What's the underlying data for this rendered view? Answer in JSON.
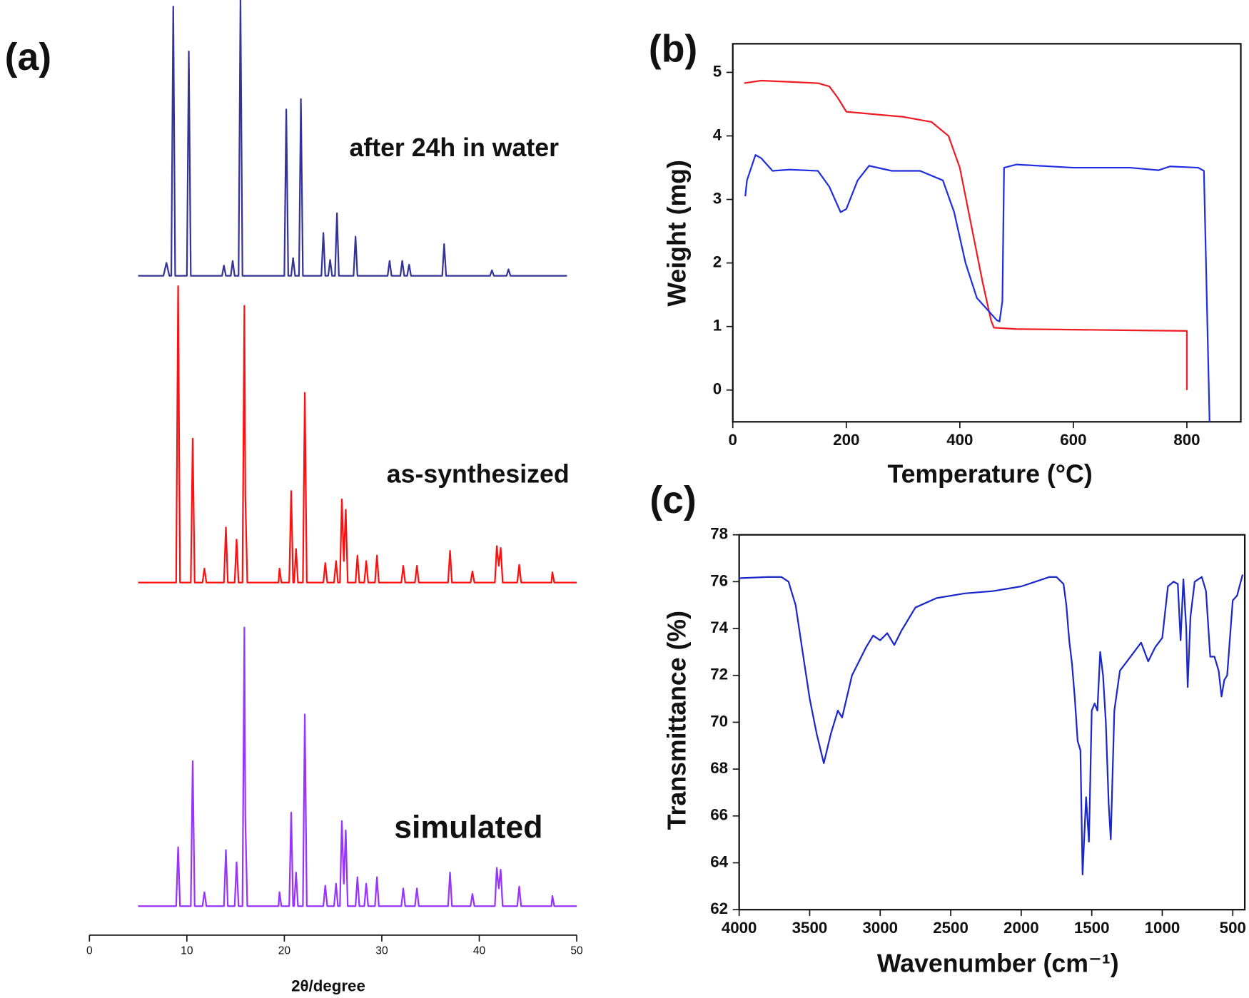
{
  "chart_data": [
    {
      "type": "line",
      "panel_label": "(a)",
      "xlabel": "2θ/degree",
      "xlim": [
        0,
        50
      ],
      "xticks": [
        0,
        10,
        20,
        30,
        40,
        50
      ],
      "ylim": [
        0,
        100
      ],
      "series": [
        {
          "name": "after 24h in water",
          "color": "#333399",
          "x": [
            5,
            7.6,
            7.9,
            8.2,
            8.4,
            8.6,
            8.8,
            10.0,
            10.2,
            10.4,
            13.6,
            13.8,
            14.0,
            14.5,
            14.7,
            14.9,
            15.3,
            15.5,
            15.7,
            20.0,
            20.2,
            20.4,
            20.7,
            20.9,
            21.1,
            21.5,
            21.7,
            21.9,
            23.8,
            24.0,
            24.2,
            24.5,
            24.7,
            24.9,
            25.2,
            25.4,
            25.6,
            27.1,
            27.3,
            27.5,
            30.6,
            30.8,
            31.0,
            31.9,
            32.1,
            32.3,
            32.6,
            32.8,
            33.0,
            36.2,
            36.4,
            36.6,
            41.1,
            41.3,
            41.5,
            42.8,
            43.0,
            43.2,
            49
          ],
          "values": [
            70.5,
            70.5,
            71.9,
            70.5,
            70.5,
            99.3,
            70.5,
            70.5,
            94.5,
            70.5,
            70.5,
            71.6,
            70.5,
            70.5,
            72.1,
            70.5,
            70.5,
            100,
            70.5,
            70.5,
            88.3,
            70.5,
            70.5,
            72.4,
            70.5,
            70.5,
            89.4,
            70.5,
            70.5,
            75.1,
            70.5,
            70.5,
            72.2,
            70.5,
            70.5,
            77.2,
            70.5,
            70.5,
            74.7,
            70.5,
            70.5,
            72.1,
            70.5,
            70.5,
            72.1,
            70.5,
            70.5,
            71.7,
            70.5,
            70.5,
            73.9,
            70.5,
            70.5,
            71.1,
            70.5,
            70.5,
            71.2,
            70.5,
            70.5
          ]
        },
        {
          "name": "as-synthesized",
          "color": "#ff1010",
          "x": [
            5,
            8.9,
            9.1,
            9.3,
            10.4,
            10.6,
            10.8,
            11.6,
            11.8,
            12.0,
            13.8,
            14.0,
            14.2,
            14.9,
            15.1,
            15.3,
            15.7,
            15.9,
            16.0,
            16.2,
            19.4,
            19.5,
            19.7,
            20.5,
            20.7,
            20.9,
            21.0,
            21.2,
            21.4,
            21.9,
            22.1,
            22.3,
            24.0,
            24.2,
            24.4,
            25.1,
            25.3,
            25.5,
            25.7,
            25.9,
            26.1,
            26.3,
            26.5,
            27.3,
            27.5,
            27.7,
            28.2,
            28.4,
            28.6,
            29.3,
            29.5,
            29.7,
            32.0,
            32.2,
            32.4,
            33.4,
            33.6,
            33.8,
            36.8,
            37.0,
            37.2,
            39.1,
            39.3,
            39.5,
            41.6,
            41.8,
            42.0,
            42.2,
            42.4,
            43.9,
            44.1,
            44.3,
            47.4,
            47.5,
            47.7,
            50
          ],
          "values": [
            37.7,
            37.7,
            69.4,
            37.7,
            37.7,
            53.1,
            37.7,
            37.7,
            39.2,
            37.7,
            37.7,
            43.6,
            37.7,
            37.7,
            42.3,
            37.7,
            37.7,
            67.3,
            47.1,
            37.7,
            37.7,
            39.2,
            37.7,
            37.7,
            47.5,
            37.7,
            37.7,
            41.3,
            37.7,
            37.7,
            58.0,
            37.7,
            37.7,
            39.8,
            37.7,
            37.7,
            40.0,
            37.7,
            37.7,
            46.6,
            40.0,
            45.5,
            37.7,
            37.7,
            40.6,
            37.7,
            37.7,
            40.0,
            37.7,
            37.7,
            40.6,
            37.7,
            37.7,
            39.5,
            37.7,
            37.7,
            39.5,
            37.7,
            37.7,
            41.1,
            37.7,
            37.7,
            38.9,
            37.7,
            37.7,
            41.6,
            39.5,
            41.4,
            37.7,
            37.7,
            39.6,
            37.7,
            37.7,
            38.8,
            37.7,
            37.7
          ]
        },
        {
          "name": "simulated",
          "color": "#9933ff",
          "x": [
            5,
            8.9,
            9.1,
            9.3,
            10.4,
            10.6,
            10.8,
            11.6,
            11.8,
            12.0,
            13.8,
            14.0,
            14.2,
            14.9,
            15.1,
            15.3,
            15.7,
            15.9,
            16.0,
            16.2,
            19.4,
            19.5,
            19.7,
            20.5,
            20.7,
            20.9,
            21.0,
            21.2,
            21.4,
            21.9,
            22.1,
            22.3,
            24.0,
            24.2,
            24.4,
            25.1,
            25.3,
            25.5,
            25.7,
            25.9,
            26.1,
            26.3,
            26.5,
            27.3,
            27.5,
            27.7,
            28.2,
            28.4,
            28.6,
            29.3,
            29.5,
            29.7,
            32.0,
            32.2,
            32.4,
            33.4,
            33.6,
            33.8,
            36.8,
            37.0,
            37.2,
            39.1,
            39.3,
            39.5,
            41.6,
            41.8,
            42.0,
            42.2,
            42.4,
            43.9,
            44.1,
            44.3,
            47.4,
            47.5,
            47.7,
            50
          ],
          "values": [
            3.1,
            3.1,
            9.4,
            3.1,
            3.1,
            18.6,
            3.1,
            3.1,
            4.6,
            3.1,
            3.1,
            9.1,
            3.1,
            3.1,
            7.8,
            3.1,
            3.1,
            32.9,
            12.5,
            3.1,
            3.1,
            4.6,
            3.1,
            3.1,
            13.1,
            3.1,
            3.1,
            6.7,
            3.1,
            3.1,
            23.6,
            3.1,
            3.1,
            5.3,
            3.1,
            3.1,
            5.5,
            3.1,
            3.1,
            12.2,
            5.5,
            11.2,
            3.1,
            3.1,
            6.2,
            3.1,
            3.1,
            5.5,
            3.1,
            3.1,
            6.2,
            3.1,
            3.1,
            5.0,
            3.1,
            3.1,
            5.0,
            3.1,
            3.1,
            6.7,
            3.1,
            3.1,
            4.4,
            3.1,
            3.1,
            7.2,
            5.0,
            7.0,
            3.1,
            3.1,
            5.2,
            3.1,
            3.1,
            4.2,
            3.1,
            3.1
          ]
        }
      ]
    },
    {
      "type": "line",
      "panel_label": "(b)",
      "xlabel": "Temperature (°C)",
      "ylabel": "Weight (mg)",
      "xlim": [
        0,
        895
      ],
      "xticks": [
        0,
        200,
        400,
        600,
        800
      ],
      "ylim": [
        -0.5,
        5.45
      ],
      "yticks": [
        0,
        1,
        2,
        3,
        4,
        5
      ],
      "series": [
        {
          "color": "#ee1c24",
          "x": [
            20,
            50,
            100,
            150,
            170,
            185,
            200,
            250,
            300,
            350,
            380,
            400,
            420,
            440,
            455,
            460,
            500,
            600,
            700,
            800,
            800
          ],
          "values": [
            4.83,
            4.87,
            4.85,
            4.83,
            4.78,
            4.6,
            4.38,
            4.34,
            4.3,
            4.22,
            4.0,
            3.5,
            2.6,
            1.7,
            1.1,
            0.98,
            0.96,
            0.95,
            0.94,
            0.93,
            0.0
          ]
        },
        {
          "color": "#1f2fe0",
          "x": [
            22,
            25,
            40,
            50,
            70,
            100,
            150,
            170,
            190,
            200,
            220,
            240,
            280,
            330,
            370,
            390,
            410,
            430,
            450,
            465,
            470,
            475,
            478,
            500,
            600,
            700,
            750,
            770,
            820,
            830,
            840
          ],
          "values": [
            3.05,
            3.3,
            3.7,
            3.65,
            3.45,
            3.47,
            3.45,
            3.2,
            2.8,
            2.85,
            3.3,
            3.53,
            3.45,
            3.45,
            3.3,
            2.8,
            2.0,
            1.45,
            1.25,
            1.1,
            1.08,
            1.4,
            3.5,
            3.55,
            3.5,
            3.5,
            3.46,
            3.52,
            3.5,
            3.45,
            -0.5
          ]
        }
      ]
    },
    {
      "type": "line",
      "panel_label": "(c)",
      "xlabel": "Wavenumber (cm⁻¹)",
      "ylabel": "Transmittance (%)",
      "xlim": [
        4000,
        415
      ],
      "xticks": [
        4000,
        3500,
        3000,
        2500,
        2000,
        1500,
        1000,
        500
      ],
      "ylim": [
        62,
        78
      ],
      "yticks": [
        62,
        64,
        66,
        68,
        70,
        72,
        74,
        76,
        78
      ],
      "series": [
        {
          "color": "#1a27c9",
          "x": [
            4000,
            3800,
            3700,
            3650,
            3600,
            3550,
            3500,
            3450,
            3400,
            3350,
            3300,
            3270,
            3200,
            3100,
            3050,
            3000,
            2950,
            2900,
            2850,
            2750,
            2600,
            2400,
            2200,
            2000,
            1900,
            1800,
            1750,
            1700,
            1680,
            1660,
            1640,
            1620,
            1600,
            1580,
            1565,
            1540,
            1520,
            1500,
            1480,
            1460,
            1440,
            1420,
            1400,
            1380,
            1365,
            1340,
            1300,
            1250,
            1200,
            1150,
            1100,
            1050,
            1000,
            960,
            920,
            890,
            870,
            850,
            830,
            820,
            800,
            770,
            720,
            690,
            660,
            630,
            600,
            580,
            560,
            540,
            500,
            470,
            430
          ],
          "values": [
            76.15,
            76.2,
            76.2,
            76.0,
            75,
            73,
            71,
            69.5,
            68.25,
            69.5,
            70.5,
            70.2,
            72,
            73.2,
            73.7,
            73.5,
            73.8,
            73.3,
            73.9,
            74.9,
            75.3,
            75.5,
            75.6,
            75.8,
            76.0,
            76.2,
            76.2,
            75.9,
            75.0,
            73.5,
            72.5,
            71,
            69.2,
            68.8,
            63.5,
            66.8,
            64.9,
            70.5,
            70.8,
            70.5,
            73.0,
            72,
            70,
            66.5,
            65.0,
            70.5,
            72.2,
            72.6,
            73.0,
            73.4,
            72.6,
            73.2,
            73.6,
            75.8,
            76.0,
            75.9,
            73.5,
            76.1,
            74,
            71.5,
            74.5,
            76.0,
            76.2,
            75.6,
            72.8,
            72.8,
            72.2,
            71.1,
            71.8,
            72,
            75.2,
            75.4,
            76.3
          ]
        }
      ]
    }
  ]
}
